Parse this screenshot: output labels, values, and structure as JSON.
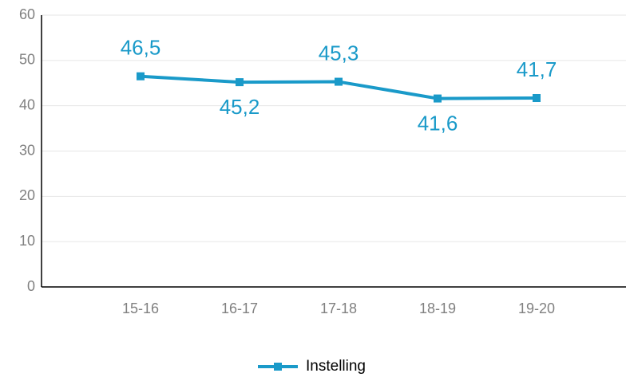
{
  "chart_data": {
    "type": "line",
    "categories": [
      "15-16",
      "16-17",
      "17-18",
      "18-19",
      "19-20"
    ],
    "series": [
      {
        "name": "Instelling",
        "color": "#1a9ac9",
        "values": [
          46.5,
          45.2,
          45.3,
          41.6,
          41.7
        ],
        "value_labels": [
          "46,5",
          "45,2",
          "45,3",
          "41,6",
          "41,7"
        ]
      }
    ],
    "ylim": [
      0,
      60
    ],
    "yticks": [
      0,
      10,
      20,
      30,
      40,
      50,
      60
    ],
    "grid": true,
    "legend": "bottom"
  }
}
